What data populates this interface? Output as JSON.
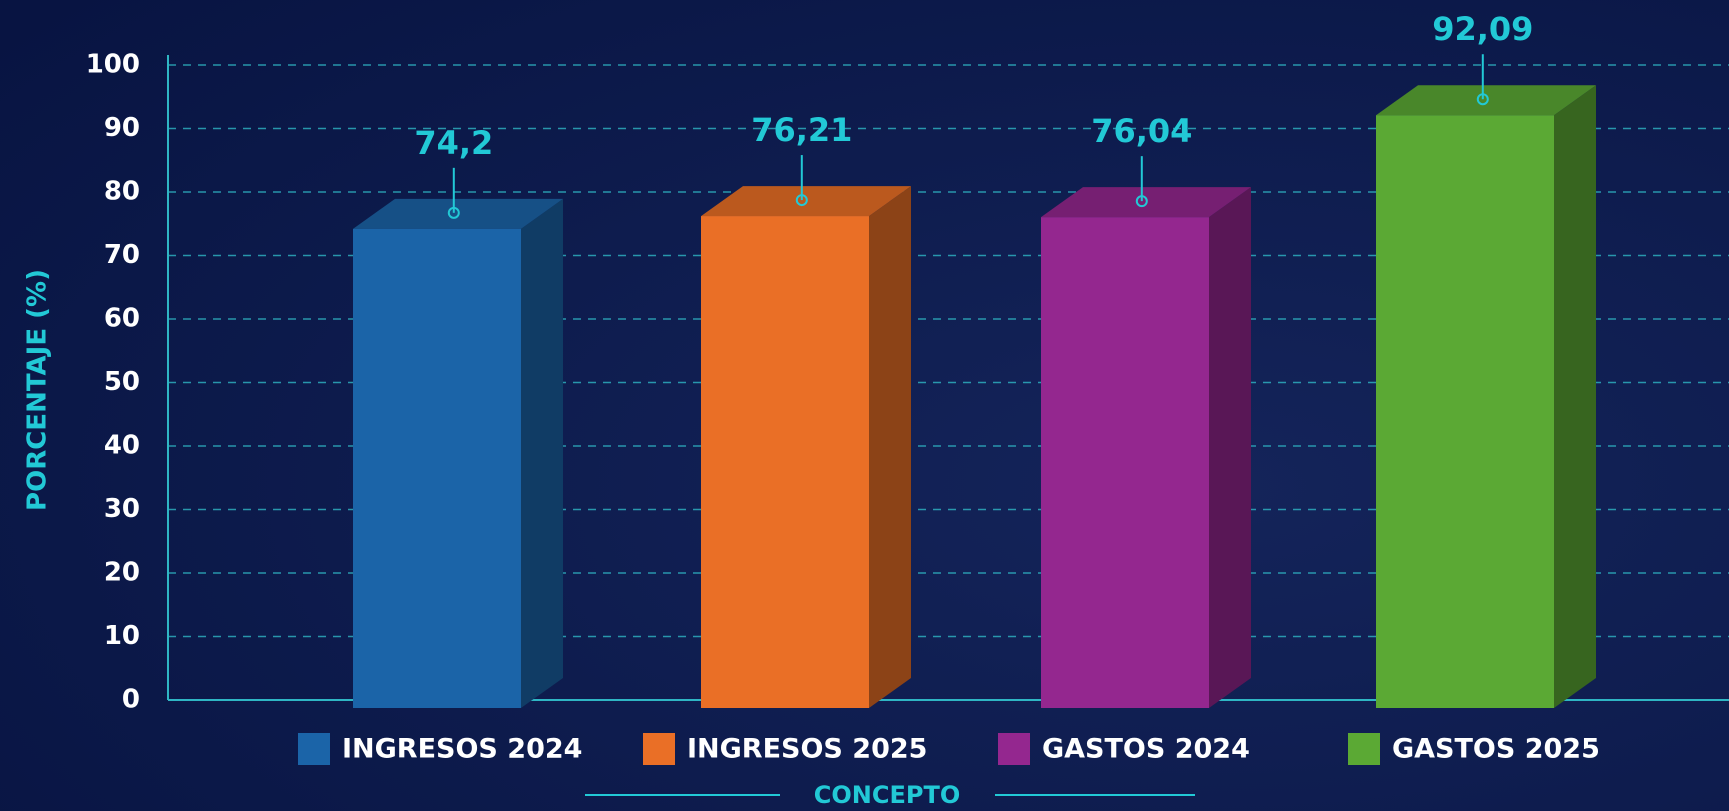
{
  "chart_data": {
    "type": "bar3d",
    "categories": [
      "INGRESOS 2024",
      "INGRESOS 2025",
      "GASTOS 2024",
      "GASTOS 2025"
    ],
    "values": [
      74.2,
      76.21,
      76.04,
      92.09
    ],
    "value_labels": [
      "74,2",
      "76,21",
      "76,04",
      "92,09"
    ],
    "colors": [
      "#1b64a8",
      "#ea6f26",
      "#94278f",
      "#5ba934"
    ],
    "ylim": [
      0,
      100
    ],
    "yticks": [
      0,
      10,
      20,
      30,
      40,
      50,
      60,
      70,
      80,
      90,
      100
    ],
    "ylabel": "PORCENTAJE (%)",
    "xlabel": "CONCEPTO",
    "grid": true
  }
}
